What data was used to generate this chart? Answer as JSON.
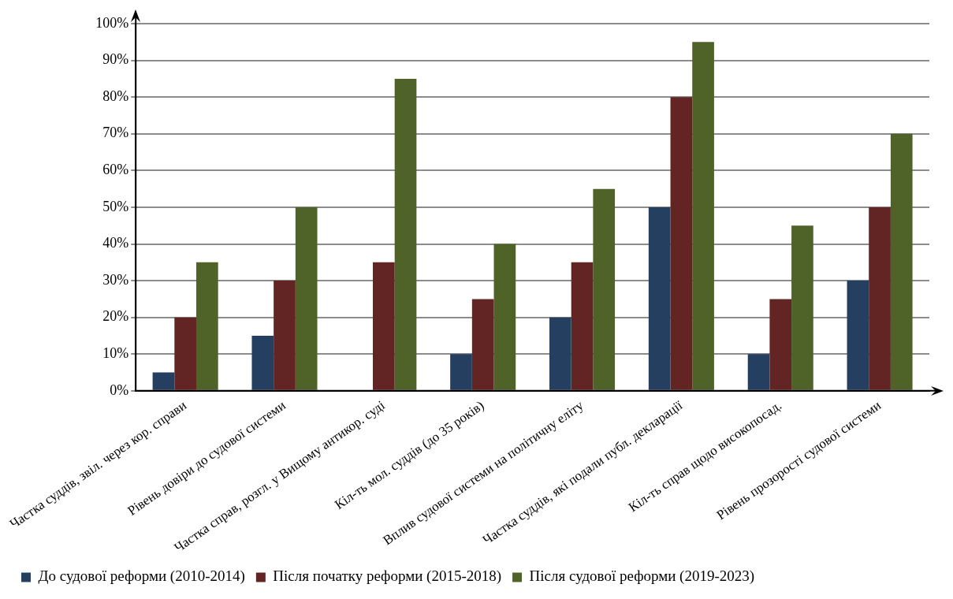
{
  "chart_data": {
    "type": "bar",
    "categories": [
      "Частка суддів, звіл. через кор. справи",
      "Рівень довіри до судової системи",
      "Частка справ, розгл. у Вищому антикор. суді",
      "Кіл-ть мол. суддів (до 35 років)",
      "Вплив судової системи на політичну еліту",
      "Частка суддів, які подали публ. декларації",
      "Кіл-ть справ щодо високопосад.",
      "Рівень прозорості судової системи"
    ],
    "series": [
      {
        "name": "До судової реформи (2010-2014)",
        "color": "#243f60",
        "values": [
          5,
          15,
          0,
          10,
          20,
          50,
          10,
          30
        ]
      },
      {
        "name": "Після початку реформи (2015-2018)",
        "color": "#632523",
        "values": [
          20,
          30,
          35,
          25,
          35,
          80,
          25,
          50
        ]
      },
      {
        "name": "Після судової реформи (2019-2023)",
        "color": "#4f6228",
        "values": [
          35,
          50,
          85,
          40,
          55,
          95,
          45,
          70
        ]
      }
    ],
    "ylim": [
      0,
      100
    ],
    "yticks": [
      {
        "value": 0,
        "label": "0%"
      },
      {
        "value": 10,
        "label": "10%"
      },
      {
        "value": 20,
        "label": "20%"
      },
      {
        "value": 30,
        "label": "30%"
      },
      {
        "value": 40,
        "label": "40%"
      },
      {
        "value": 50,
        "label": "50%"
      },
      {
        "value": 60,
        "label": "60%"
      },
      {
        "value": 70,
        "label": "70%"
      },
      {
        "value": 80,
        "label": "80%"
      },
      {
        "value": 90,
        "label": "90%"
      },
      {
        "value": 100,
        "label": "100%"
      }
    ],
    "grid": "y",
    "legend": "bottom"
  }
}
